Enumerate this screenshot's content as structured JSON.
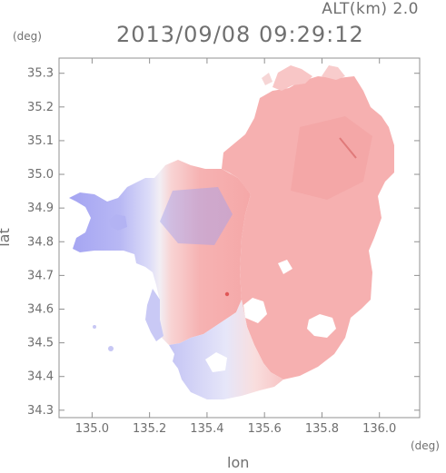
{
  "header": {
    "altitude_label": "ALT(km) 2.0",
    "timestamp": "2013/09/08 09:29:12"
  },
  "axes": {
    "x_title": "lon",
    "y_title": "lat",
    "x_unit": "(deg)",
    "y_unit": "(deg)",
    "x_range": [
      134.885,
      136.14
    ],
    "y_range": [
      34.278,
      35.345
    ],
    "x_ticks": [
      {
        "value": 135.0,
        "label": "135.0"
      },
      {
        "value": 135.2,
        "label": "135.2"
      },
      {
        "value": 135.4,
        "label": "135.4"
      },
      {
        "value": 135.6,
        "label": "135.6"
      },
      {
        "value": 135.8,
        "label": "135.8"
      },
      {
        "value": 136.0,
        "label": "136.0"
      }
    ],
    "y_ticks": [
      {
        "value": 34.3,
        "label": "34.3"
      },
      {
        "value": 34.4,
        "label": "34.4"
      },
      {
        "value": 34.5,
        "label": "34.5"
      },
      {
        "value": 34.6,
        "label": "34.6"
      },
      {
        "value": 34.7,
        "label": "34.7"
      },
      {
        "value": 34.8,
        "label": "34.8"
      },
      {
        "value": 34.9,
        "label": "34.9"
      },
      {
        "value": 35.0,
        "label": "35.0"
      },
      {
        "value": 35.1,
        "label": "35.1"
      },
      {
        "value": 35.2,
        "label": "35.2"
      },
      {
        "value": 35.3,
        "label": "35.3"
      }
    ]
  },
  "colors": {
    "frame": "#909090",
    "approaching": "#a9a9f4",
    "receding": "#f5a6a6",
    "neutral": "#f4f2f7"
  }
}
